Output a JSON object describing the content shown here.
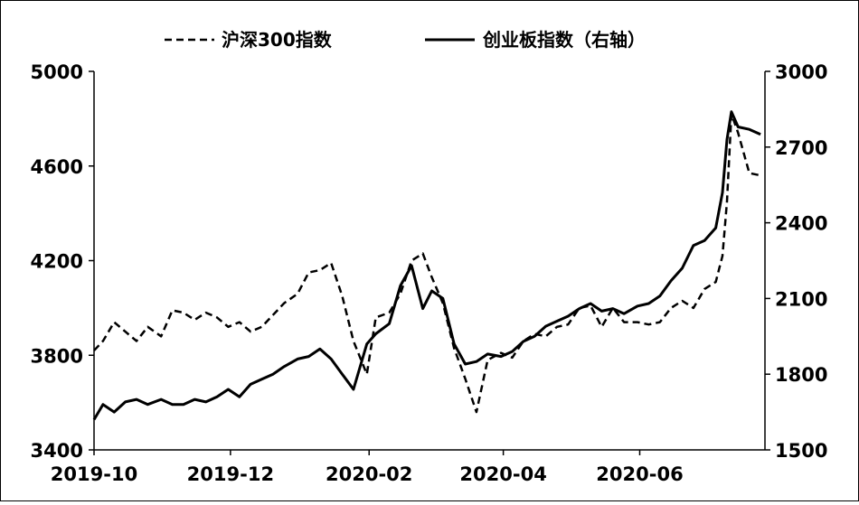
{
  "chart_data": {
    "type": "line",
    "title": "",
    "xlabel": "",
    "ylabel_left": "",
    "ylabel_right": "",
    "x_ticks": [
      "2019-10",
      "2019-12",
      "2020-02",
      "2020-04",
      "2020-06"
    ],
    "y_left": {
      "min": 3400,
      "max": 5000,
      "ticks": [
        3400,
        3800,
        4200,
        4600,
        5000
      ]
    },
    "y_right": {
      "min": 1500,
      "max": 3000,
      "ticks": [
        1500,
        1800,
        2100,
        2400,
        2700,
        3000
      ]
    },
    "legend_position": "top",
    "grid": false,
    "series": [
      {
        "name": "沪深300指数",
        "axis": "left",
        "style": "dashed",
        "color": "#000000",
        "x": [
          "2019-10-01",
          "2019-10-05",
          "2019-10-10",
          "2019-10-15",
          "2019-10-20",
          "2019-10-25",
          "2019-10-31",
          "2019-11-05",
          "2019-11-10",
          "2019-11-15",
          "2019-11-20",
          "2019-11-25",
          "2019-11-30",
          "2019-12-05",
          "2019-12-10",
          "2019-12-15",
          "2019-12-20",
          "2019-12-25",
          "2019-12-31",
          "2020-01-05",
          "2020-01-10",
          "2020-01-15",
          "2020-01-20",
          "2020-01-25",
          "2020-01-31",
          "2020-02-04",
          "2020-02-10",
          "2020-02-15",
          "2020-02-20",
          "2020-02-25",
          "2020-02-29",
          "2020-03-05",
          "2020-03-10",
          "2020-03-15",
          "2020-03-20",
          "2020-03-25",
          "2020-03-31",
          "2020-04-05",
          "2020-04-10",
          "2020-04-15",
          "2020-04-20",
          "2020-04-25",
          "2020-04-30",
          "2020-05-05",
          "2020-05-10",
          "2020-05-15",
          "2020-05-20",
          "2020-05-25",
          "2020-05-31",
          "2020-06-05",
          "2020-06-10",
          "2020-06-15",
          "2020-06-20",
          "2020-06-25",
          "2020-06-30",
          "2020-07-05",
          "2020-07-08",
          "2020-07-10",
          "2020-07-12",
          "2020-07-15",
          "2020-07-20",
          "2020-07-25"
        ],
        "values": [
          3820,
          3860,
          3940,
          3900,
          3860,
          3920,
          3880,
          3990,
          3980,
          3950,
          3980,
          3960,
          3920,
          3940,
          3900,
          3920,
          3970,
          4020,
          4060,
          4150,
          4160,
          4190,
          4050,
          3860,
          3720,
          3960,
          3980,
          4060,
          4200,
          4230,
          4130,
          4020,
          3830,
          3700,
          3560,
          3780,
          3810,
          3790,
          3860,
          3890,
          3880,
          3920,
          3930,
          4000,
          4010,
          3920,
          4000,
          3940,
          3940,
          3930,
          3940,
          4000,
          4030,
          4000,
          4080,
          4110,
          4220,
          4450,
          4820,
          4740,
          4570,
          4560
        ]
      },
      {
        "name": "创业板指数（右轴）",
        "axis": "right",
        "style": "solid",
        "color": "#000000",
        "x": [
          "2019-10-01",
          "2019-10-05",
          "2019-10-10",
          "2019-10-15",
          "2019-10-20",
          "2019-10-25",
          "2019-10-31",
          "2019-11-05",
          "2019-11-10",
          "2019-11-15",
          "2019-11-20",
          "2019-11-25",
          "2019-11-30",
          "2019-12-05",
          "2019-12-10",
          "2019-12-15",
          "2019-12-20",
          "2019-12-25",
          "2019-12-31",
          "2020-01-05",
          "2020-01-10",
          "2020-01-15",
          "2020-01-20",
          "2020-01-25",
          "2020-01-31",
          "2020-02-04",
          "2020-02-10",
          "2020-02-15",
          "2020-02-20",
          "2020-02-25",
          "2020-02-29",
          "2020-03-05",
          "2020-03-10",
          "2020-03-15",
          "2020-03-20",
          "2020-03-25",
          "2020-03-31",
          "2020-04-05",
          "2020-04-10",
          "2020-04-15",
          "2020-04-20",
          "2020-04-25",
          "2020-04-30",
          "2020-05-05",
          "2020-05-10",
          "2020-05-15",
          "2020-05-20",
          "2020-05-25",
          "2020-05-31",
          "2020-06-05",
          "2020-06-10",
          "2020-06-15",
          "2020-06-20",
          "2020-06-25",
          "2020-06-30",
          "2020-07-05",
          "2020-07-08",
          "2020-07-10",
          "2020-07-12",
          "2020-07-15",
          "2020-07-20",
          "2020-07-25"
        ],
        "values": [
          1620,
          1680,
          1650,
          1690,
          1700,
          1680,
          1700,
          1680,
          1680,
          1700,
          1690,
          1710,
          1740,
          1710,
          1760,
          1780,
          1800,
          1830,
          1860,
          1870,
          1900,
          1860,
          1800,
          1740,
          1920,
          1960,
          2000,
          2150,
          2230,
          2060,
          2130,
          2100,
          1920,
          1840,
          1850,
          1880,
          1870,
          1890,
          1930,
          1950,
          1990,
          2010,
          2030,
          2060,
          2080,
          2050,
          2060,
          2040,
          2070,
          2080,
          2110,
          2170,
          2220,
          2310,
          2330,
          2380,
          2520,
          2730,
          2840,
          2780,
          2770,
          2750
        ]
      }
    ]
  }
}
